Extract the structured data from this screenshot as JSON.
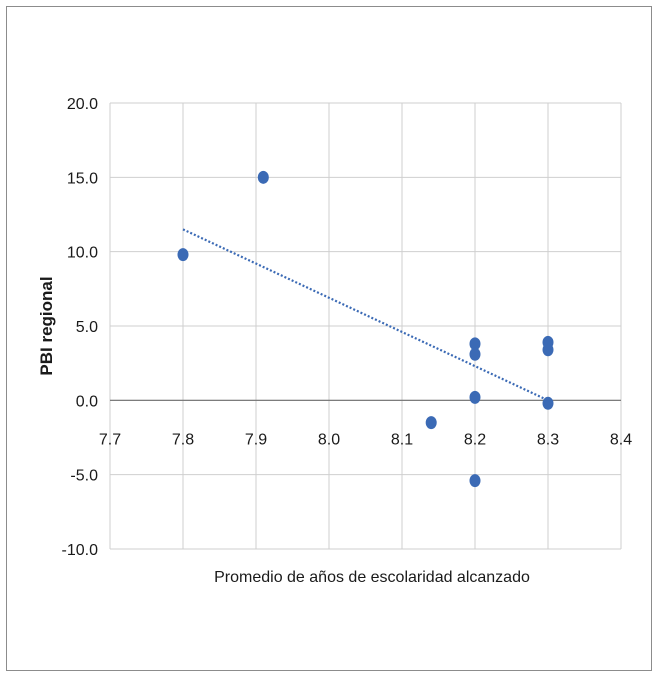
{
  "chart_data": {
    "type": "scatter",
    "xlabel": "Promedio de años de escolaridad alcanzado",
    "ylabel": "PBI regional",
    "xlim": [
      7.7,
      8.4
    ],
    "ylim": [
      -10,
      20
    ],
    "x_ticks": [
      "7.7",
      "7.8",
      "7.9",
      "8.0",
      "8.1",
      "8.2",
      "8.3",
      "8.4"
    ],
    "y_ticks": [
      "20.0",
      "15.0",
      "10.0",
      "5.0",
      "0.0",
      "-5.0",
      "-10.0"
    ],
    "grid": true,
    "point_color": "#3b6ab5",
    "trend_color": "#3b6ab5",
    "points": [
      {
        "x": 7.8,
        "y": 9.8
      },
      {
        "x": 7.91,
        "y": 15.0
      },
      {
        "x": 8.14,
        "y": -1.5
      },
      {
        "x": 8.2,
        "y": 3.8
      },
      {
        "x": 8.2,
        "y": 3.1
      },
      {
        "x": 8.2,
        "y": 0.2
      },
      {
        "x": 8.2,
        "y": -5.4
      },
      {
        "x": 8.3,
        "y": 3.9
      },
      {
        "x": 8.3,
        "y": 3.4
      },
      {
        "x": 8.3,
        "y": -0.2
      }
    ],
    "trendline": {
      "style": "dotted",
      "x": [
        7.8,
        8.3
      ],
      "y": [
        11.5,
        0.0
      ]
    }
  }
}
